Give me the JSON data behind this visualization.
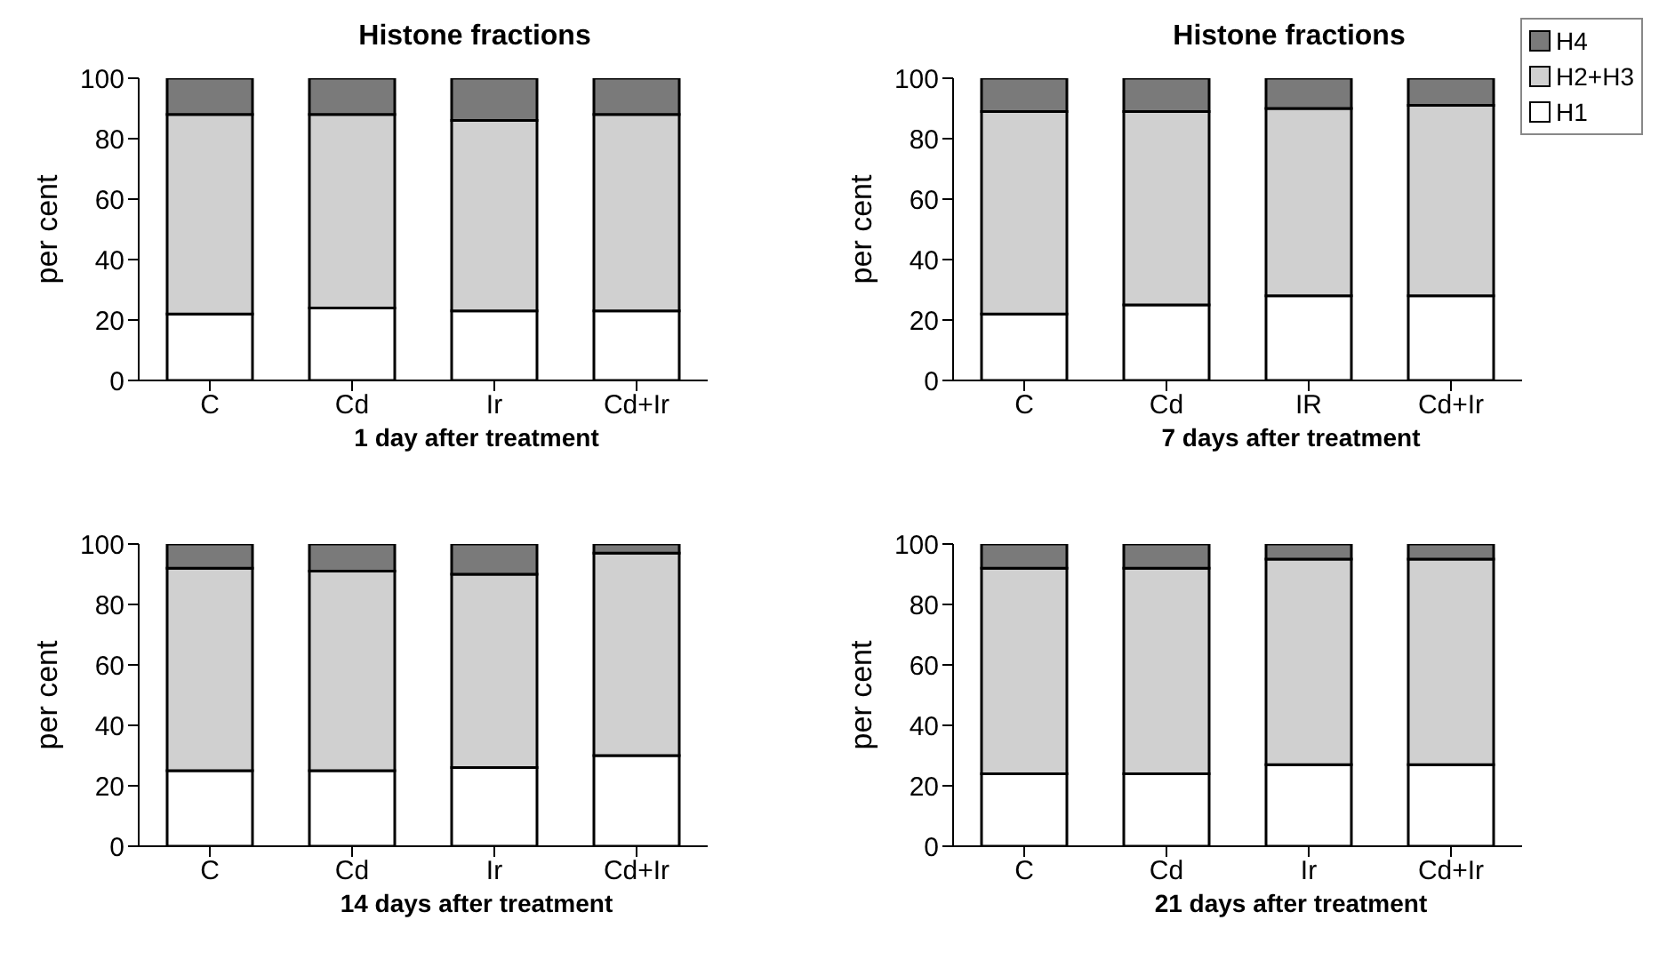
{
  "chart_data": [
    {
      "type": "bar",
      "title": "Histone fractions",
      "xlabel": "1 day after treatment",
      "ylabel": "per cent",
      "categories": [
        "C",
        "Cd",
        "Ir",
        "Cd+Ir"
      ],
      "stacked": true,
      "ylim": [
        0,
        100
      ],
      "yticks": [
        0,
        20,
        40,
        60,
        80,
        100
      ],
      "grid": false,
      "legend": false,
      "series": [
        {
          "color": "#ffffff",
          "values": [
            22,
            24,
            23,
            23
          ]
        },
        {
          "color": "#d0d0d0",
          "values": [
            66,
            64,
            63,
            65
          ]
        },
        {
          "color": "#7a7a7a",
          "values": [
            12,
            12,
            14,
            12
          ]
        }
      ]
    },
    {
      "type": "bar",
      "title": "Histone fractions",
      "xlabel": "7 days after treatment",
      "ylabel": "per cent",
      "categories": [
        "C",
        "Cd",
        "IR",
        "Cd+Ir"
      ],
      "stacked": true,
      "ylim": [
        0,
        100
      ],
      "yticks": [
        0,
        20,
        40,
        60,
        80,
        100
      ],
      "grid": false,
      "legend": "top right",
      "series": [
        {
          "name": "H1",
          "color": "#ffffff",
          "values": [
            22,
            25,
            28,
            28
          ]
        },
        {
          "name": "H2+H3",
          "color": "#d0d0d0",
          "values": [
            67,
            64,
            62,
            63
          ]
        },
        {
          "name": "H4",
          "color": "#7a7a7a",
          "values": [
            11,
            11,
            10,
            9
          ]
        }
      ]
    },
    {
      "type": "bar",
      "xlabel": "14 days after treatment",
      "ylabel": "per cent",
      "categories": [
        "C",
        "Cd",
        "Ir",
        "Cd+Ir"
      ],
      "stacked": true,
      "ylim": [
        0,
        100
      ],
      "yticks": [
        0,
        20,
        40,
        60,
        80,
        100
      ],
      "grid": false,
      "legend": false,
      "series": [
        {
          "color": "#ffffff",
          "values": [
            25,
            25,
            26,
            30
          ]
        },
        {
          "color": "#d0d0d0",
          "values": [
            67,
            66,
            64,
            67
          ]
        },
        {
          "color": "#7a7a7a",
          "values": [
            8,
            9,
            10,
            3
          ]
        }
      ]
    },
    {
      "type": "bar",
      "xlabel": "21 days after treatment",
      "ylabel": "per cent",
      "categories": [
        "C",
        "Cd",
        "Ir",
        "Cd+Ir"
      ],
      "stacked": true,
      "ylim": [
        0,
        100
      ],
      "yticks": [
        0,
        20,
        40,
        60,
        80,
        100
      ],
      "grid": false,
      "legend": false,
      "series": [
        {
          "color": "#ffffff",
          "values": [
            24,
            24,
            27,
            27
          ]
        },
        {
          "color": "#d0d0d0",
          "values": [
            68,
            68,
            68,
            68
          ]
        },
        {
          "color": "#7a7a7a",
          "values": [
            8,
            8,
            5,
            5
          ]
        }
      ]
    }
  ]
}
